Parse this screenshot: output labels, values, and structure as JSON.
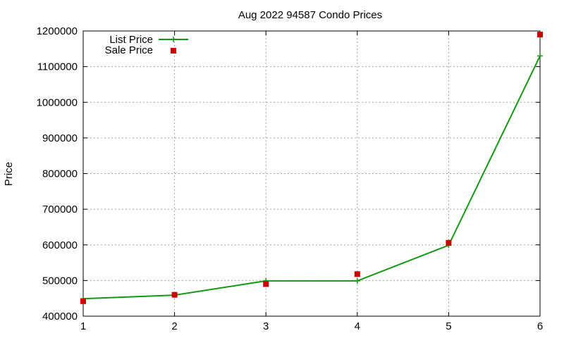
{
  "chart_data": {
    "type": "line",
    "title": "Aug 2022 94587 Condo Prices",
    "xlabel": "",
    "ylabel": "Price",
    "x": [
      1,
      2,
      3,
      4,
      5,
      6
    ],
    "xlim": [
      1,
      6
    ],
    "ylim": [
      400000,
      1200000
    ],
    "xticks": [
      1,
      2,
      3,
      4,
      5,
      6
    ],
    "yticks": [
      400000,
      500000,
      600000,
      700000,
      800000,
      900000,
      1000000,
      1100000,
      1200000
    ],
    "grid": true,
    "legend_position": "top-left",
    "series": [
      {
        "name": "List Price",
        "style": "line-with-plus-markers",
        "color": "#119911",
        "values": [
          449000,
          459000,
          499000,
          499000,
          599000,
          1130000
        ]
      },
      {
        "name": "Sale Price",
        "style": "square-points",
        "color": "#cc0000",
        "values": [
          442000,
          460000,
          490000,
          518000,
          606000,
          1190000
        ]
      }
    ]
  }
}
